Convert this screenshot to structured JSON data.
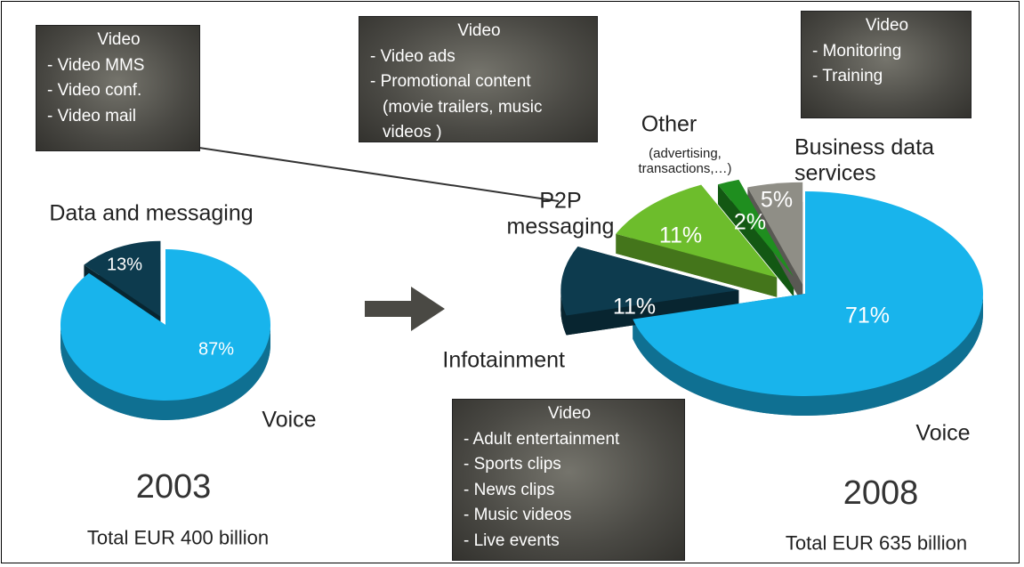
{
  "chart_data": [
    {
      "type": "pie",
      "title": "2003",
      "subtitle": "Total EUR 400 billion",
      "categories": [
        "Voice",
        "Data and messaging"
      ],
      "values": [
        87,
        13
      ],
      "value_labels": [
        "87%",
        "13%"
      ],
      "colors": [
        "#18b4ec",
        "#0d3b4e"
      ],
      "annotations": [
        {
          "title": "Video",
          "lines": [
            "- Video MMS",
            "- Video conf.",
            "- Video mail"
          ]
        }
      ]
    },
    {
      "type": "pie",
      "title": "2008",
      "subtitle": "Total EUR 635 billion",
      "categories": [
        "Voice",
        "Infotainment",
        "P2P messaging",
        "Other",
        "Business data services"
      ],
      "other_note": "(advertising, transactions,…)",
      "values": [
        71,
        11,
        11,
        2,
        5
      ],
      "value_labels": [
        "71%",
        "11%",
        "11%",
        "2%",
        "5%"
      ],
      "colors": [
        "#18b4ec",
        "#0d3b4e",
        "#6dbd2c",
        "#1f8e1f",
        "#8f8e86"
      ],
      "annotations": [
        {
          "title": "Video",
          "lines": [
            "- Video ads",
            "- Promotional content",
            "(movie trailers, music videos )"
          ]
        },
        {
          "title": "Video",
          "lines": [
            "- Monitoring",
            "- Training"
          ]
        },
        {
          "title": "Video",
          "lines": [
            "- Adult entertainment",
            "- Sports clips",
            "- News clips",
            "- Music videos",
            "- Live events"
          ]
        }
      ]
    }
  ]
}
